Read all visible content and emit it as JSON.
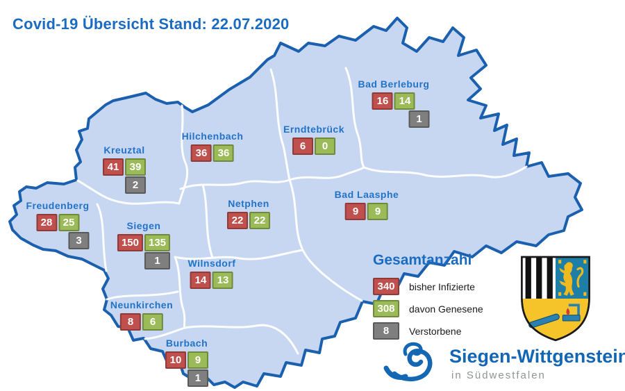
{
  "title": "Covid-19 Übersicht Stand: 22.07.2020",
  "colors": {
    "infected": "#C0504D",
    "infected_border": "#8E3A37",
    "recovered": "#9BBB59",
    "recovered_border": "#71893F",
    "deceased": "#7F7F7F",
    "deceased_border": "#595959",
    "map_fill": "#C7D7F1",
    "map_border": "#1B60AE",
    "municipality_label": "#2273C8",
    "title_blue": "#1B6CC0"
  },
  "chart_data": {
    "type": "map",
    "title": "Covid-19 Übersicht Stand: 22.07.2020",
    "series_legend": [
      "bisher Infizierte",
      "davon Genesene",
      "Verstorbene"
    ],
    "municipalities": [
      {
        "name": "Bad Berleburg",
        "infected": 16,
        "recovered": 14,
        "deceased": 1
      },
      {
        "name": "Erndtebrück",
        "infected": 6,
        "recovered": 0,
        "deceased": null
      },
      {
        "name": "Hilchenbach",
        "infected": 36,
        "recovered": 36,
        "deceased": null
      },
      {
        "name": "Kreuztal",
        "infected": 41,
        "recovered": 39,
        "deceased": 2
      },
      {
        "name": "Freudenberg",
        "infected": 28,
        "recovered": 25,
        "deceased": 3
      },
      {
        "name": "Netphen",
        "infected": 22,
        "recovered": 22,
        "deceased": null
      },
      {
        "name": "Bad Laasphe",
        "infected": 9,
        "recovered": 9,
        "deceased": null
      },
      {
        "name": "Siegen",
        "infected": 150,
        "recovered": 135,
        "deceased": 1
      },
      {
        "name": "Wilnsdorf",
        "infected": 14,
        "recovered": 13,
        "deceased": null
      },
      {
        "name": "Neunkirchen",
        "infected": 8,
        "recovered": 6,
        "deceased": null
      },
      {
        "name": "Burbach",
        "infected": 10,
        "recovered": 9,
        "deceased": 1
      }
    ]
  },
  "legend": {
    "heading": "Gesamtanzahl",
    "items": [
      {
        "value": 340,
        "label": "bisher Infizierte",
        "type": "infected"
      },
      {
        "value": 308,
        "label": "davon Genesene",
        "type": "recovered"
      },
      {
        "value": 8,
        "label": "Verstorbene",
        "type": "deceased"
      }
    ]
  },
  "branding": {
    "logo_text": "Siegen-Wittgenstein",
    "logo_tagline": "in Südwestfalen",
    "crest_icon": "siegen-wittgenstein-coat-of-arms",
    "logo_mark_icon": "double-s-swirl"
  }
}
